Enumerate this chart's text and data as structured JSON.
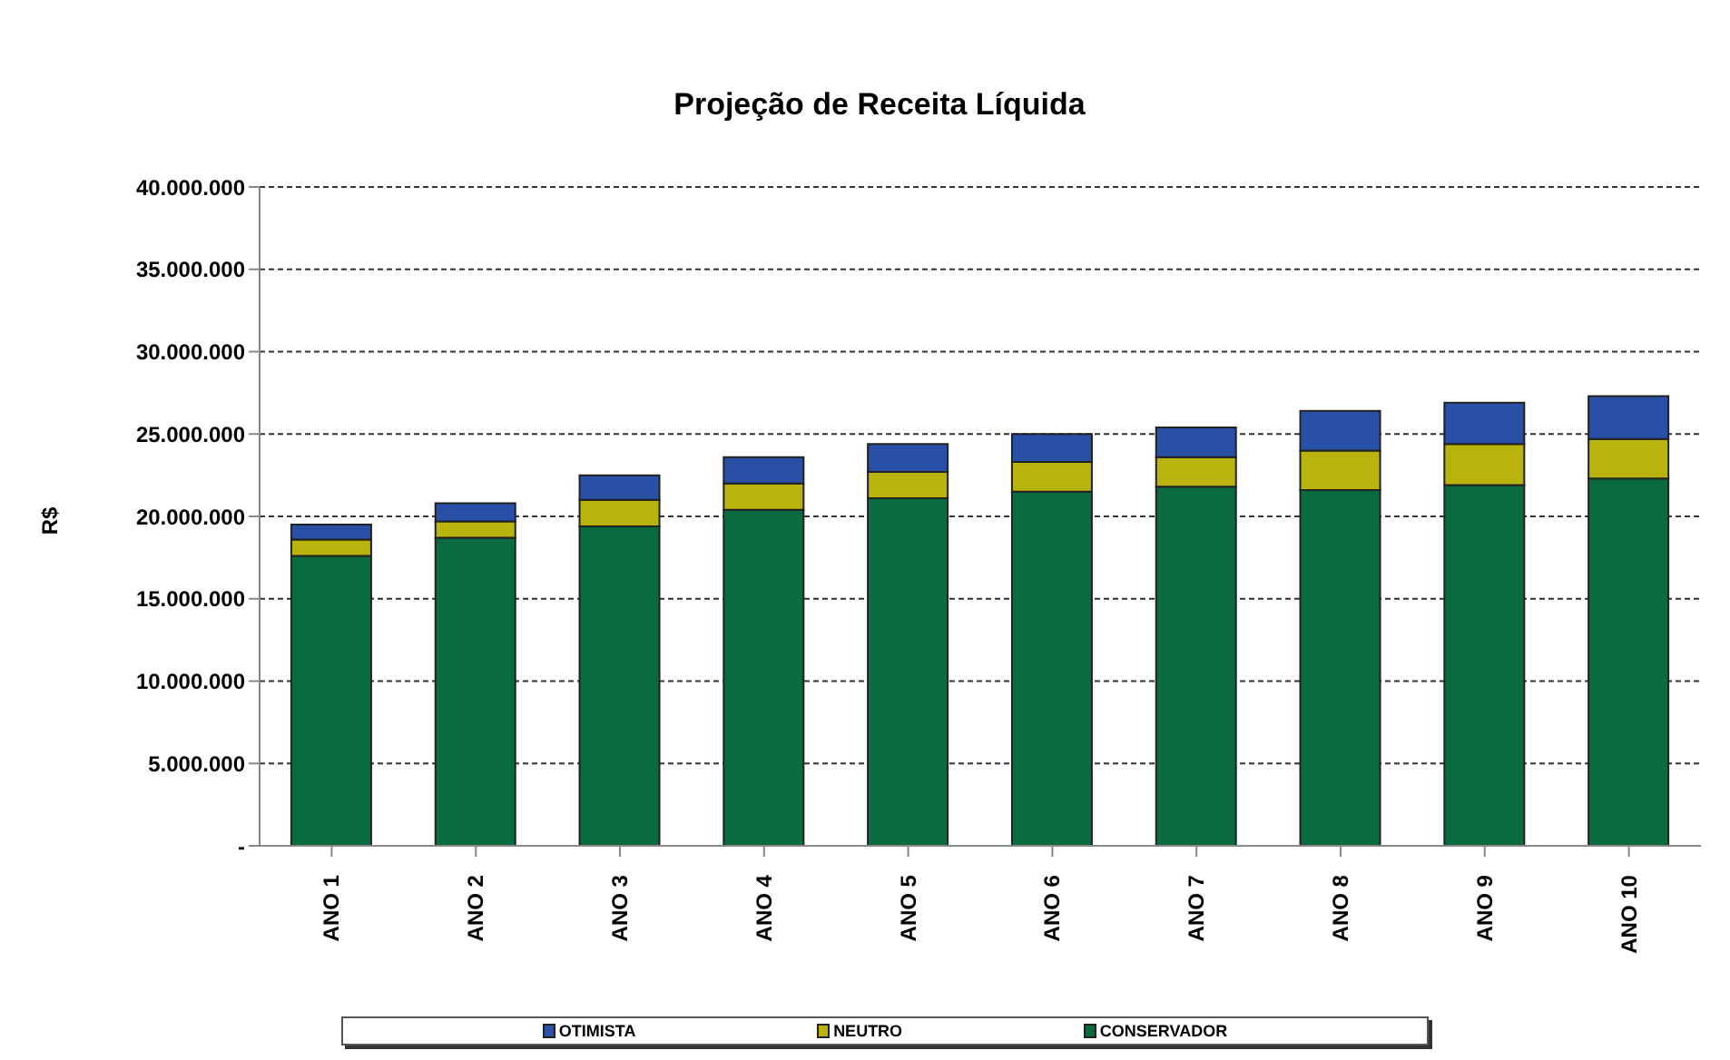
{
  "chart_data": {
    "type": "bar",
    "title": "Projeção de Receita Líquida",
    "ylabel": "R$",
    "categories": [
      "ANO 1",
      "ANO 2",
      "ANO 3",
      "ANO 4",
      "ANO 5",
      "ANO 6",
      "ANO 7",
      "ANO 8",
      "ANO 9",
      "ANO 10"
    ],
    "stacked": true,
    "series": [
      {
        "name": "CONSERVADOR",
        "color": "#0a6b40",
        "values": [
          17600000,
          18700000,
          19400000,
          20400000,
          21100000,
          21500000,
          21800000,
          21600000,
          21900000,
          22300000
        ]
      },
      {
        "name": "NEUTRO",
        "color": "#b8b40c",
        "values": [
          1000000,
          1000000,
          1600000,
          1600000,
          1600000,
          1800000,
          1800000,
          2400000,
          2500000,
          2400000
        ]
      },
      {
        "name": "OTIMISTA",
        "color": "#2750a6",
        "values": [
          900000,
          1100000,
          1500000,
          1600000,
          1700000,
          1700000,
          1800000,
          2400000,
          2500000,
          2600000
        ]
      }
    ],
    "ylim": [
      0,
      40000000
    ],
    "yticks": [
      {
        "value": 0,
        "label": "-"
      },
      {
        "value": 5000000,
        "label": "5.000.000"
      },
      {
        "value": 10000000,
        "label": "10.000.000"
      },
      {
        "value": 15000000,
        "label": "15.000.000"
      },
      {
        "value": 20000000,
        "label": "20.000.000"
      },
      {
        "value": 25000000,
        "label": "25.000.000"
      },
      {
        "value": 30000000,
        "label": "30.000.000"
      },
      {
        "value": 35000000,
        "label": "35.000.000"
      },
      {
        "value": 40000000,
        "label": "40.000.000"
      }
    ],
    "grid": "y",
    "legend": "bottom"
  }
}
